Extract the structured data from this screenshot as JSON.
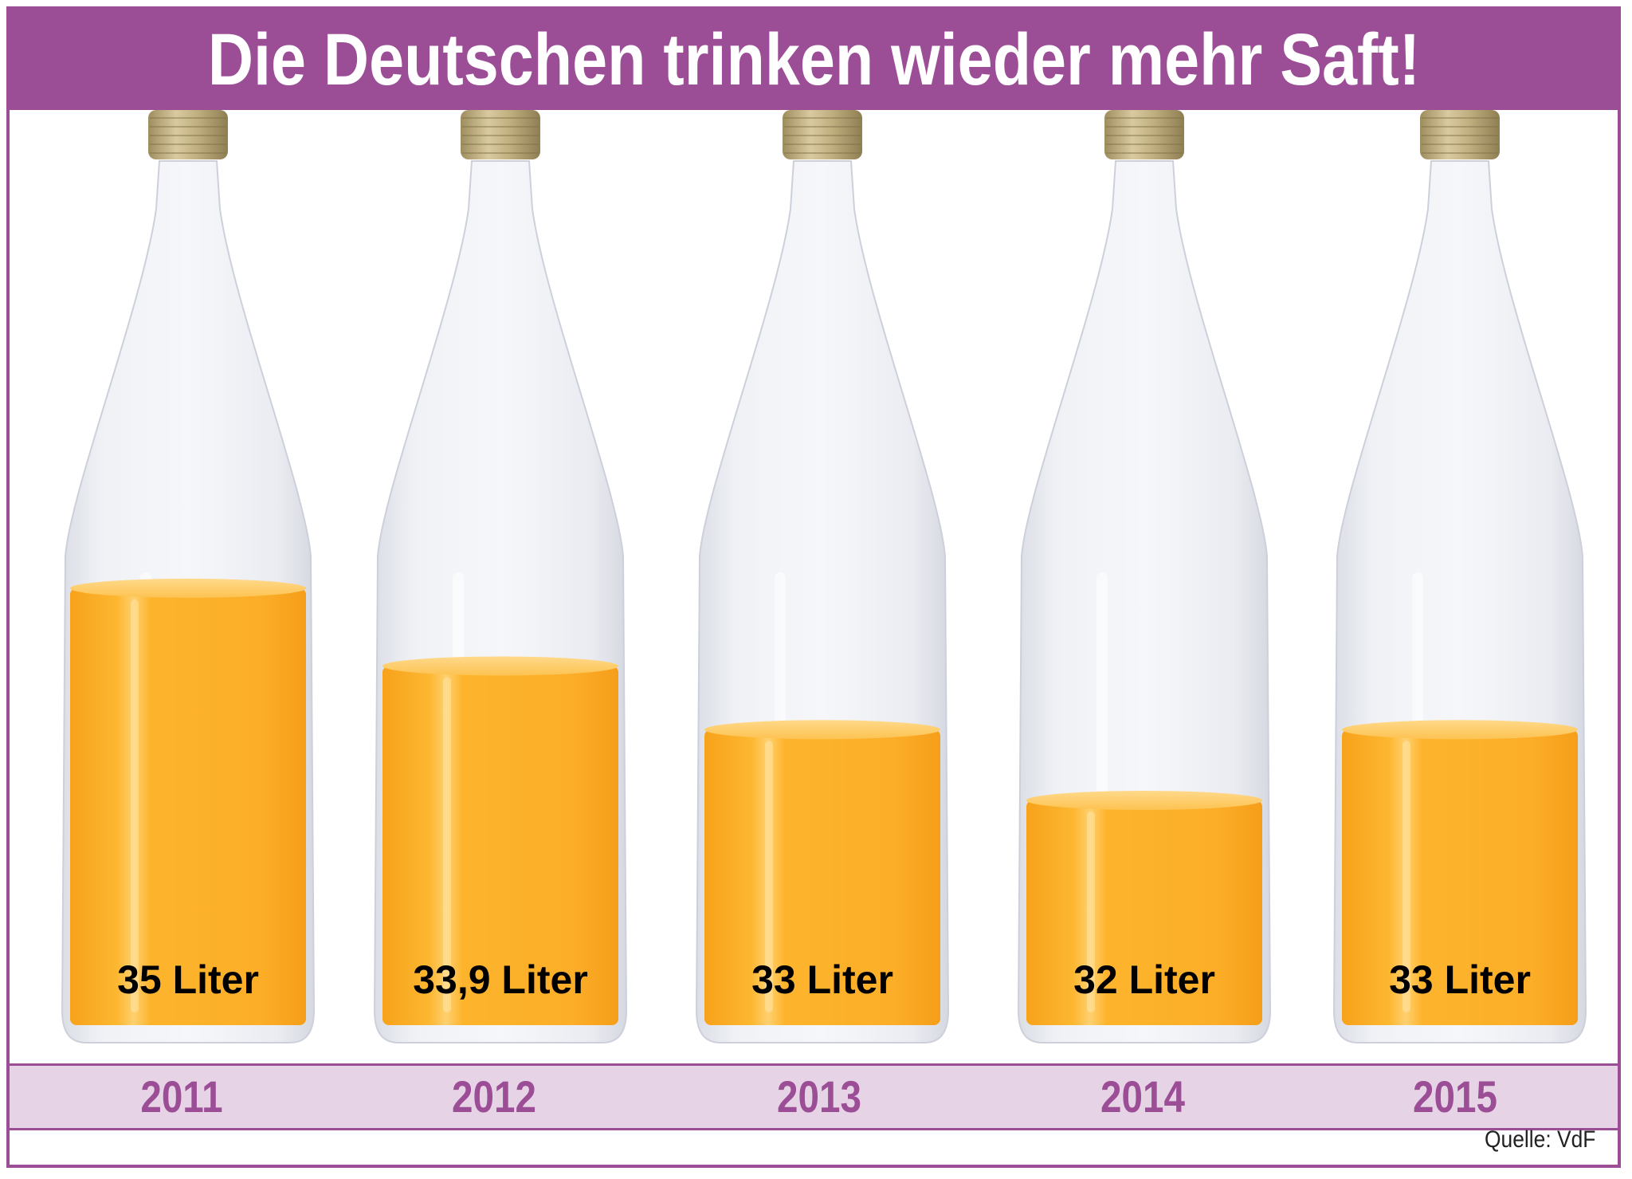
{
  "title": "Die Deutschen trinken wieder mehr Saft!",
  "source": "Quelle: VdF",
  "colors": {
    "accent": "#9b4d96",
    "band": "#e6d3e5",
    "juice": "#fbb034",
    "cap": "#c9b88a"
  },
  "chart_data": {
    "type": "bar",
    "categories": [
      "2011",
      "2012",
      "2013",
      "2014",
      "2015"
    ],
    "values": [
      35,
      33.9,
      33,
      32,
      33
    ],
    "labels": [
      "35 Liter",
      "33,9 Liter",
      "33 Liter",
      "32 Liter",
      "33 Liter"
    ],
    "unit": "Liter",
    "title": "Die Deutschen trinken wieder mehr Saft!",
    "xlabel": "",
    "ylabel": "",
    "grid": false
  }
}
